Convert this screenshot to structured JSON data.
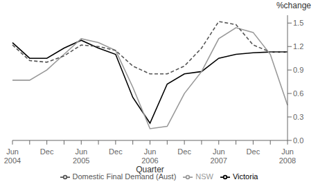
{
  "chart_data": {
    "type": "line",
    "xlabel": "Quarter",
    "ylabel": "%change",
    "categories": [
      "Jun\n2004",
      null,
      "Dec",
      null,
      "Jun\n2005",
      null,
      "Dec",
      null,
      "Jun\n2006",
      null,
      "Dec",
      null,
      "Jun\n2007",
      null,
      "Dec",
      null,
      "Jun\n2008"
    ],
    "series": [
      {
        "name": "Victoria",
        "color": "#000000",
        "line_style": "solid",
        "values": [
          1.25,
          1.05,
          1.05,
          1.18,
          1.28,
          1.18,
          1.1,
          0.55,
          0.22,
          0.72,
          0.85,
          0.88,
          1.05,
          1.1,
          1.12,
          1.13,
          1.13
        ]
      },
      {
        "name": "NSW",
        "color": "#999999",
        "line_style": "solid",
        "values": [
          0.77,
          0.77,
          0.9,
          1.1,
          1.3,
          1.25,
          1.15,
          0.68,
          0.15,
          0.18,
          0.6,
          0.88,
          1.3,
          1.44,
          1.38,
          1.1,
          0.45
        ]
      },
      {
        "name": "Domestic Final Demand (Aust)",
        "color": "#555555",
        "line_style": "dashed",
        "values": [
          1.22,
          1.02,
          1.0,
          1.08,
          1.22,
          1.2,
          1.15,
          0.95,
          0.85,
          0.85,
          0.95,
          1.18,
          1.52,
          1.48,
          1.22,
          1.13,
          1.13
        ]
      }
    ],
    "ylim": [
      0,
      1.6
    ],
    "yticks": [
      {
        "value": 0,
        "label": "0.0"
      },
      0.3,
      0.6,
      0.9,
      1.2,
      1.5
    ],
    "grid": false,
    "legend": "bottom"
  }
}
